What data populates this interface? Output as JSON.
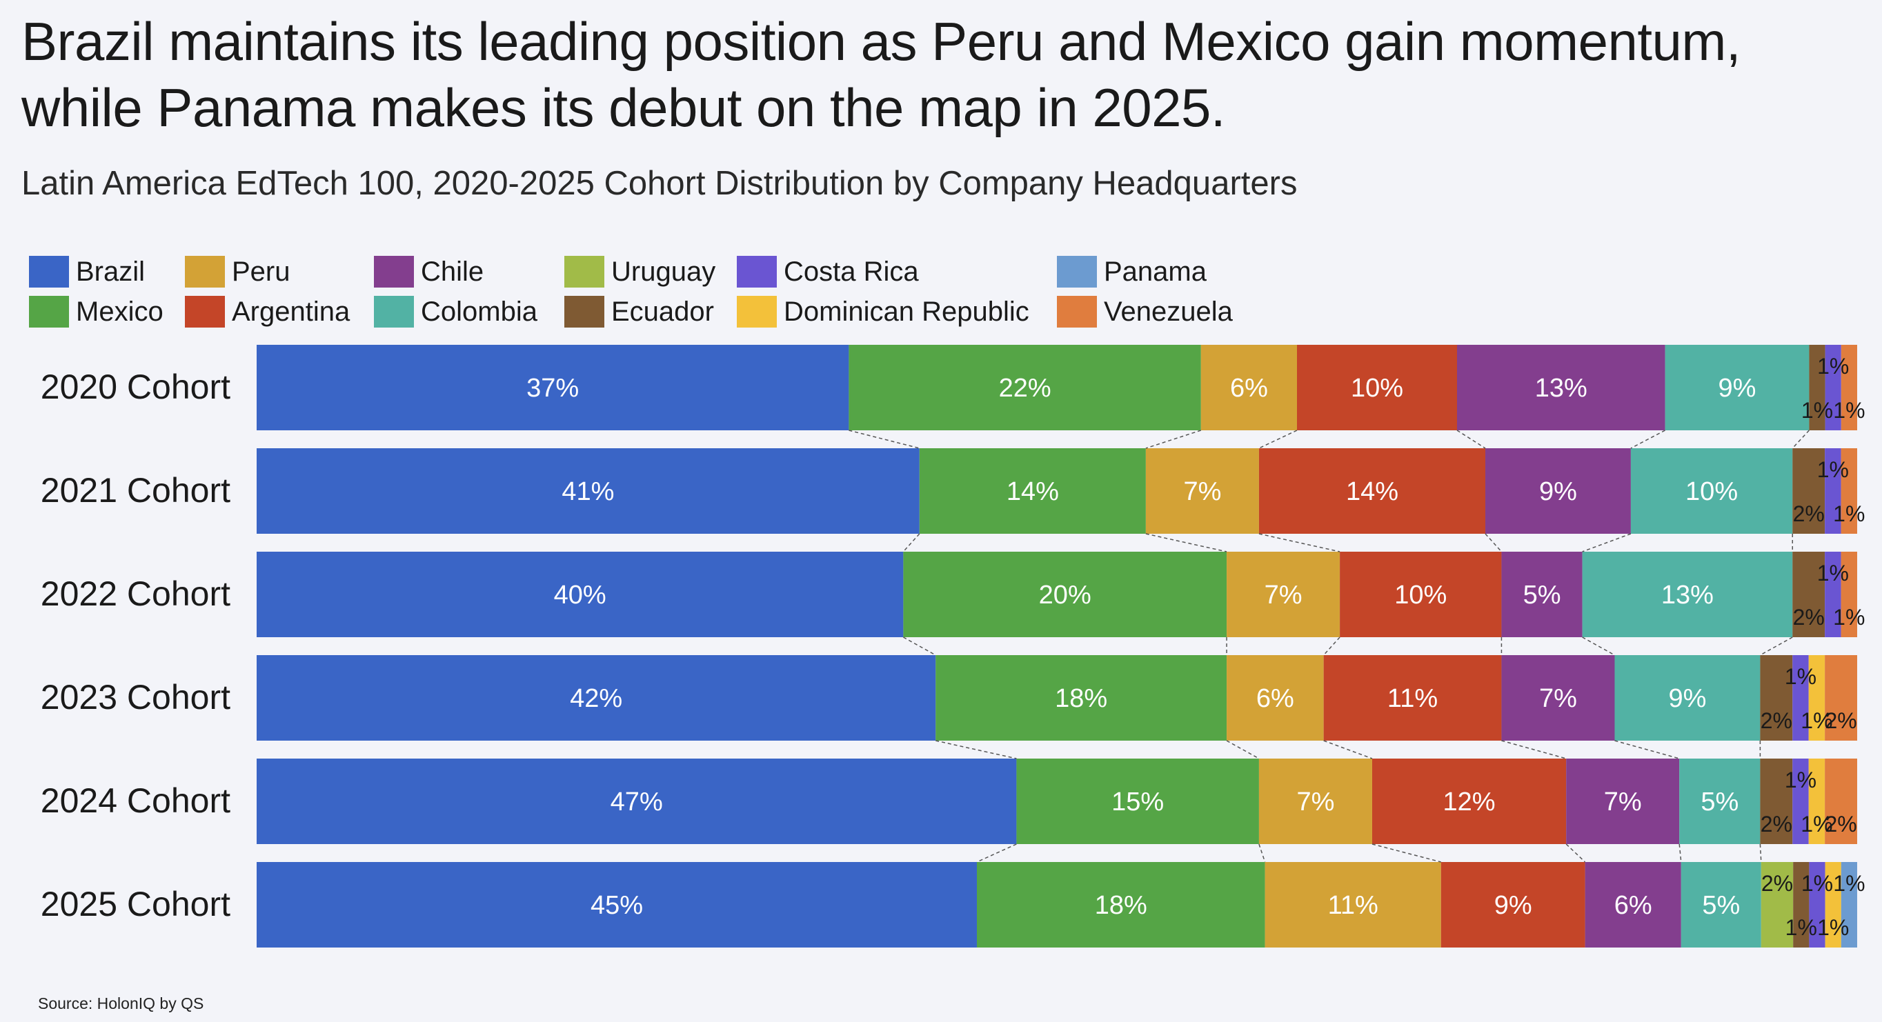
{
  "title": "Brazil maintains its leading position as Peru and Mexico gain momentum, while Panama makes its debut on the map in 2025.",
  "subtitle": "Latin America EdTech 100, 2020-2025 Cohort Distribution by Company Headquarters",
  "source": "Source: HolonIQ by QS",
  "legend": [
    {
      "label": "Brazil",
      "color": "#3a65c6"
    },
    {
      "label": "Mexico",
      "color": "#55a546"
    },
    {
      "label": "Peru",
      "color": "#d3a236"
    },
    {
      "label": "Argentina",
      "color": "#c44528"
    },
    {
      "label": "Chile",
      "color": "#833e8e"
    },
    {
      "label": "Colombia",
      "color": "#52b2a4"
    },
    {
      "label": "Uruguay",
      "color": "#a1bb48"
    },
    {
      "label": "Ecuador",
      "color": "#7f5a33"
    },
    {
      "label": "Costa Rica",
      "color": "#6a55d2"
    },
    {
      "label": "Dominican Republic",
      "color": "#f3c13a"
    },
    {
      "label": "Panama",
      "color": "#6c9bd0"
    },
    {
      "label": "Venezuela",
      "color": "#e07d3e"
    }
  ],
  "chart_data": {
    "type": "bar",
    "orientation": "horizontal",
    "stacked": "100%",
    "title": "Brazil maintains its leading position as Peru and Mexico gain momentum, while Panama makes its debut on the map in 2025.",
    "subtitle": "Latin America EdTech 100, 2020-2025 Cohort Distribution by Company Headquarters",
    "xlim": [
      0,
      100
    ],
    "categories": [
      "2020 Cohort",
      "2021 Cohort",
      "2022 Cohort",
      "2023 Cohort",
      "2024 Cohort",
      "2025 Cohort"
    ],
    "series": [
      {
        "name": "Brazil",
        "color": "#3a65c6",
        "values": [
          37,
          41,
          40,
          42,
          47,
          45
        ],
        "labels": [
          "37%",
          "41%",
          "40%",
          "42%",
          "47%",
          "45%"
        ]
      },
      {
        "name": "Mexico",
        "color": "#55a546",
        "values": [
          22,
          14,
          20,
          18,
          15,
          18
        ],
        "labels": [
          "22%",
          "14%",
          "20%",
          "18%",
          "15%",
          "18%"
        ]
      },
      {
        "name": "Peru",
        "color": "#d3a236",
        "values": [
          6,
          7,
          7,
          6,
          7,
          11
        ],
        "labels": [
          "6%",
          "7%",
          "7%",
          "6%",
          "7%",
          "11%"
        ]
      },
      {
        "name": "Argentina",
        "color": "#c44528",
        "values": [
          10,
          14,
          10,
          11,
          12,
          9
        ],
        "labels": [
          "10%",
          "14%",
          "10%",
          "11%",
          "12%",
          "9%"
        ]
      },
      {
        "name": "Chile",
        "color": "#833e8e",
        "values": [
          13,
          9,
          5,
          7,
          7,
          6
        ],
        "labels": [
          "13%",
          "9%",
          "5%",
          "7%",
          "7%",
          "6%"
        ]
      },
      {
        "name": "Colombia",
        "color": "#52b2a4",
        "values": [
          9,
          10,
          13,
          9,
          5,
          5
        ],
        "labels": [
          "9%",
          "10%",
          "13%",
          "9%",
          "5%",
          "5%"
        ]
      },
      {
        "name": "Uruguay",
        "color": "#a1bb48",
        "values": [
          0,
          0,
          0,
          0,
          0,
          2
        ],
        "labels": [
          "",
          "",
          "",
          "",
          "",
          "2%"
        ]
      },
      {
        "name": "Ecuador",
        "color": "#7f5a33",
        "values": [
          1,
          2,
          2,
          2,
          2,
          1
        ],
        "labels": [
          "1%",
          "2%",
          "2%",
          "2%",
          "2%",
          "1%"
        ]
      },
      {
        "name": "Costa Rica",
        "color": "#6a55d2",
        "values": [
          1,
          1,
          1,
          1,
          1,
          1
        ],
        "labels": [
          "1%",
          "1%",
          "1%",
          "1%",
          "1%",
          "1%"
        ]
      },
      {
        "name": "Dominican Republic",
        "color": "#f3c13a",
        "values": [
          0,
          0,
          0,
          1,
          1,
          1
        ],
        "labels": [
          "",
          "",
          "",
          "1%",
          "1%",
          "1%"
        ]
      },
      {
        "name": "Panama",
        "color": "#6c9bd0",
        "values": [
          0,
          0,
          0,
          0,
          0,
          1
        ],
        "labels": [
          "",
          "",
          "",
          "",
          "",
          "1%"
        ]
      },
      {
        "name": "Venezuela",
        "color": "#e07d3e",
        "values": [
          1,
          1,
          1,
          2,
          2,
          0
        ],
        "labels": [
          "1%",
          "1%",
          "1%",
          "2%",
          "2%",
          ""
        ]
      }
    ],
    "connectors": "dashed lines link the end of each of the first six segments between consecutive cohorts",
    "legend_position": "top"
  }
}
